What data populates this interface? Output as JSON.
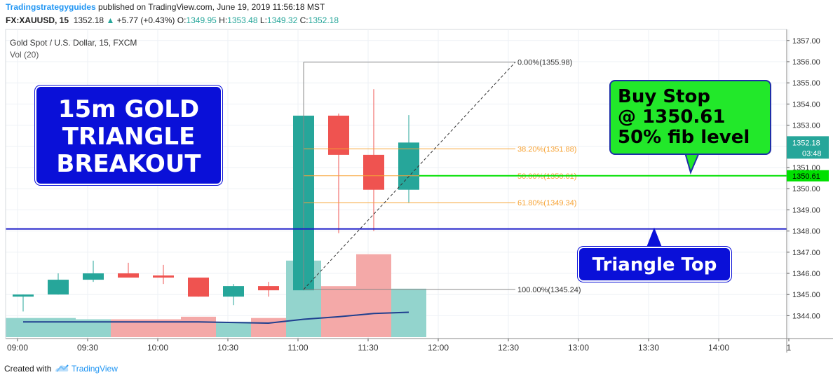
{
  "header": {
    "author": "Tradingstrategyguides",
    "published_text": "published on TradingView.com, June 19, 2019 11:56:18 MST",
    "symbol": "FX:XAUUSD, 15",
    "last_price": "1352.18",
    "change_arrow": "▲",
    "change": "+5.77 (+0.43%)",
    "open_label": "O:",
    "open": "1349.95",
    "high_label": "H:",
    "high": "1353.48",
    "low_label": "L:",
    "low": "1349.32",
    "close_label": "C:",
    "close": "1352.18"
  },
  "pane": {
    "instrument": "Gold Spot / U.S. Dollar, 15, FXCM",
    "volume_label": "Vol (20)"
  },
  "annotations": {
    "title_lines": [
      "15m GOLD",
      "TRIANGLE",
      "BREAKOUT"
    ],
    "buy_lines": [
      "Buy Stop",
      "@ 1350.61",
      "50% fib level"
    ],
    "triangle_label": "Triangle Top"
  },
  "footer": {
    "created_with": "Created with",
    "brand": "TradingView"
  },
  "colors": {
    "bull": "#26a69a",
    "bear": "#ef5350",
    "bull_vol": "#93d4cd",
    "bear_vol": "#f4a9a8",
    "fib": "#f7a437",
    "fib_edge": "#888888",
    "buy_line": "#00e000",
    "triangle_line": "#1a1ac8",
    "vol_ma": "#1f3f8f",
    "grid": "#eef1f6",
    "axis": "#555555"
  },
  "chart_data": {
    "type": "candlestick",
    "symbol": "FX:XAUUSD",
    "interval": "15",
    "y_axis": {
      "side": "right",
      "ticks": [
        1344.0,
        1345.0,
        1346.0,
        1347.0,
        1348.0,
        1349.0,
        1350.0,
        1351.0,
        1352.0,
        1353.0,
        1354.0,
        1355.0,
        1356.0,
        1357.0
      ],
      "tick_labels": [
        "1344.00",
        "1345.00",
        "1346.00",
        "1347.00",
        "1348.00",
        "1349.00",
        "1350.00",
        "1351.00",
        "1352.00",
        "1353.00",
        "1354.00",
        "1355.00",
        "1356.00",
        "1357.00"
      ],
      "range": [
        1343.2,
        1357.3
      ]
    },
    "x_axis": {
      "tick_labels": [
        "09:00",
        "09:30",
        "10:00",
        "10:30",
        "11:00",
        "11:30",
        "12:00",
        "12:30",
        "13:00",
        "13:30",
        "14:00",
        "1"
      ],
      "tick_index": [
        0,
        2,
        4,
        6,
        8,
        10,
        12,
        14,
        16,
        18,
        20,
        22
      ]
    },
    "candles": [
      {
        "time": "09:00",
        "open": 1344.9,
        "high": 1345.0,
        "low": 1344.2,
        "close": 1345.0
      },
      {
        "time": "09:15",
        "open": 1345.0,
        "high": 1346.0,
        "low": 1345.0,
        "close": 1345.7
      },
      {
        "time": "09:30",
        "open": 1345.7,
        "high": 1346.6,
        "low": 1345.6,
        "close": 1346.0
      },
      {
        "time": "09:45",
        "open": 1346.0,
        "high": 1346.5,
        "low": 1345.8,
        "close": 1345.8
      },
      {
        "time": "10:00",
        "open": 1345.9,
        "high": 1346.4,
        "low": 1345.5,
        "close": 1345.8
      },
      {
        "time": "10:15",
        "open": 1345.8,
        "high": 1345.8,
        "low": 1344.9,
        "close": 1344.9
      },
      {
        "time": "10:30",
        "open": 1344.9,
        "high": 1345.5,
        "low": 1344.5,
        "close": 1345.4
      },
      {
        "time": "10:45",
        "open": 1345.4,
        "high": 1345.6,
        "low": 1344.9,
        "close": 1345.2
      },
      {
        "time": "11:00",
        "open": 1345.2,
        "high": 1355.98,
        "low": 1345.2,
        "close": 1353.45
      },
      {
        "time": "11:15",
        "open": 1353.45,
        "high": 1353.55,
        "low": 1347.9,
        "close": 1351.6
      },
      {
        "time": "11:30",
        "open": 1351.6,
        "high": 1354.7,
        "low": 1348.0,
        "close": 1349.95
      },
      {
        "time": "11:45",
        "open": 1349.95,
        "high": 1353.48,
        "low": 1349.32,
        "close": 1352.18
      }
    ],
    "volume": {
      "label": "Vol (20)",
      "values": [
        3.0,
        3.0,
        2.8,
        2.8,
        2.8,
        3.2,
        2.4,
        3.0,
        12.0,
        8.0,
        13.0,
        7.6
      ],
      "ma": [
        2.4,
        2.4,
        2.4,
        2.4,
        2.4,
        2.4,
        2.3,
        2.2,
        2.8,
        3.2,
        3.7,
        3.9
      ]
    },
    "fibonacci": {
      "levels": [
        {
          "label": "0.00%",
          "price": 1355.98,
          "text": "0.00%(1355.98)"
        },
        {
          "label": "38.20%",
          "price": 1351.88,
          "text": "38.20%(1351.88)"
        },
        {
          "label": "50.00%",
          "price": 1350.61,
          "text": "50.00%(1350.61)"
        },
        {
          "label": "61.80%",
          "price": 1349.34,
          "text": "61.80%(1349.34)"
        },
        {
          "label": "100.00%",
          "price": 1345.24,
          "text": "100.00%(1345.24)"
        }
      ]
    },
    "horizontal_lines": [
      {
        "name": "buy-stop",
        "price": 1350.61,
        "label": "1350.61"
      },
      {
        "name": "triangle-top",
        "price": 1348.1
      }
    ],
    "price_marker": {
      "price": 1352.18,
      "label": "1352.18",
      "countdown": "03:48"
    }
  }
}
